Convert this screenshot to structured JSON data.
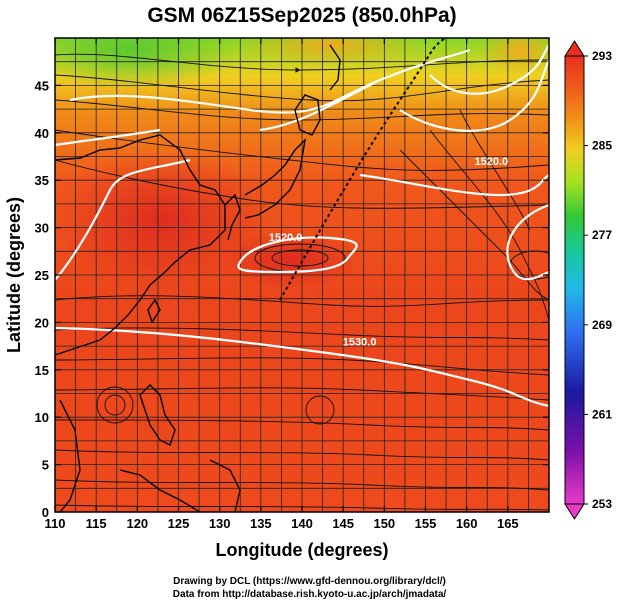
{
  "chart_data": {
    "type": "heatmap",
    "title": "GSM 06Z15Sep2025 (850.0hPa)",
    "xlabel": "Longitude (degrees)",
    "ylabel": "Latitude  (degrees)",
    "xlim": [
      110,
      170
    ],
    "ylim": [
      0,
      50
    ],
    "x_ticks": [
      110,
      115,
      120,
      125,
      130,
      135,
      140,
      145,
      150,
      155,
      160,
      165
    ],
    "y_ticks": [
      0,
      5,
      10,
      15,
      20,
      25,
      30,
      35,
      40,
      45
    ],
    "colorbar": {
      "min": 253,
      "max": 293,
      "ticks": [
        253,
        261,
        269,
        277,
        285,
        293
      ]
    },
    "contour_labels": [
      {
        "text": "1520.0",
        "lon": 138,
        "lat": 29
      },
      {
        "text": "1530.0",
        "lon": 147,
        "lat": 18
      },
      {
        "text": "1520.0",
        "lon": 163,
        "lat": 37
      }
    ],
    "overlays": [
      "temperature shading",
      "geopotential height contours",
      "wind streamlines",
      "coastlines"
    ]
  },
  "credits": {
    "line1": "Drawing by DCL (https://www.gfd-dennou.org/library/dcl/)",
    "line2": "Data from http://database.rish.kyoto-u.ac.jp/arch/jmadata/"
  }
}
